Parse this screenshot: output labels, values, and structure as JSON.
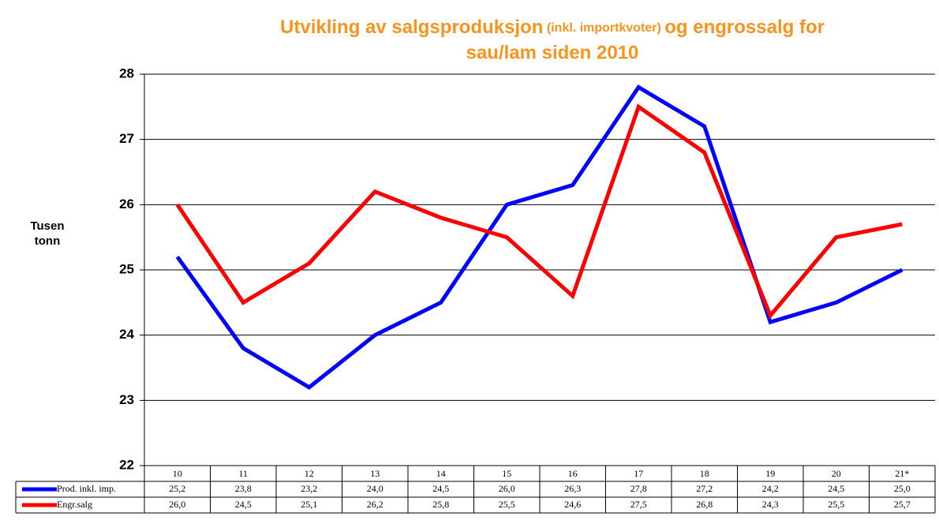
{
  "chart_data": {
    "type": "line",
    "title": [
      "Utvikling av salgsproduksjon",
      "(inkl. importkvoter)",
      "og engrossalg for",
      "sau/lam siden 2010"
    ],
    "ylabel": [
      "Tusen",
      "tonn"
    ],
    "categories": [
      "10",
      "11",
      "12",
      "13",
      "14",
      "15",
      "16",
      "17",
      "18",
      "19",
      "20",
      "21*"
    ],
    "series": [
      {
        "name": "Prod. inkl. imp.",
        "color": "#0000ff",
        "values": [
          25.2,
          23.8,
          23.2,
          24.0,
          24.5,
          26.0,
          26.3,
          27.8,
          27.2,
          24.2,
          24.5,
          25.0
        ],
        "value_labels": [
          "25,2",
          "23,8",
          "23,2",
          "24,0",
          "24,5",
          "26,0",
          "26,3",
          "27,8",
          "27,2",
          "24,2",
          "24,5",
          "25,0"
        ]
      },
      {
        "name": "Engr.salg",
        "color": "#ff0000",
        "values": [
          26.0,
          24.5,
          25.1,
          26.2,
          25.8,
          25.5,
          24.6,
          27.5,
          26.8,
          24.3,
          25.5,
          25.7
        ],
        "value_labels": [
          "26,0",
          "24,5",
          "25,1",
          "26,2",
          "25,8",
          "25,5",
          "24,6",
          "27,5",
          "26,8",
          "24,3",
          "25,5",
          "25,7"
        ]
      }
    ],
    "ylim": [
      22,
      28
    ],
    "yticks": [
      22,
      23,
      24,
      25,
      26,
      27,
      28
    ],
    "grid": true,
    "title_color": "#f7941d"
  }
}
